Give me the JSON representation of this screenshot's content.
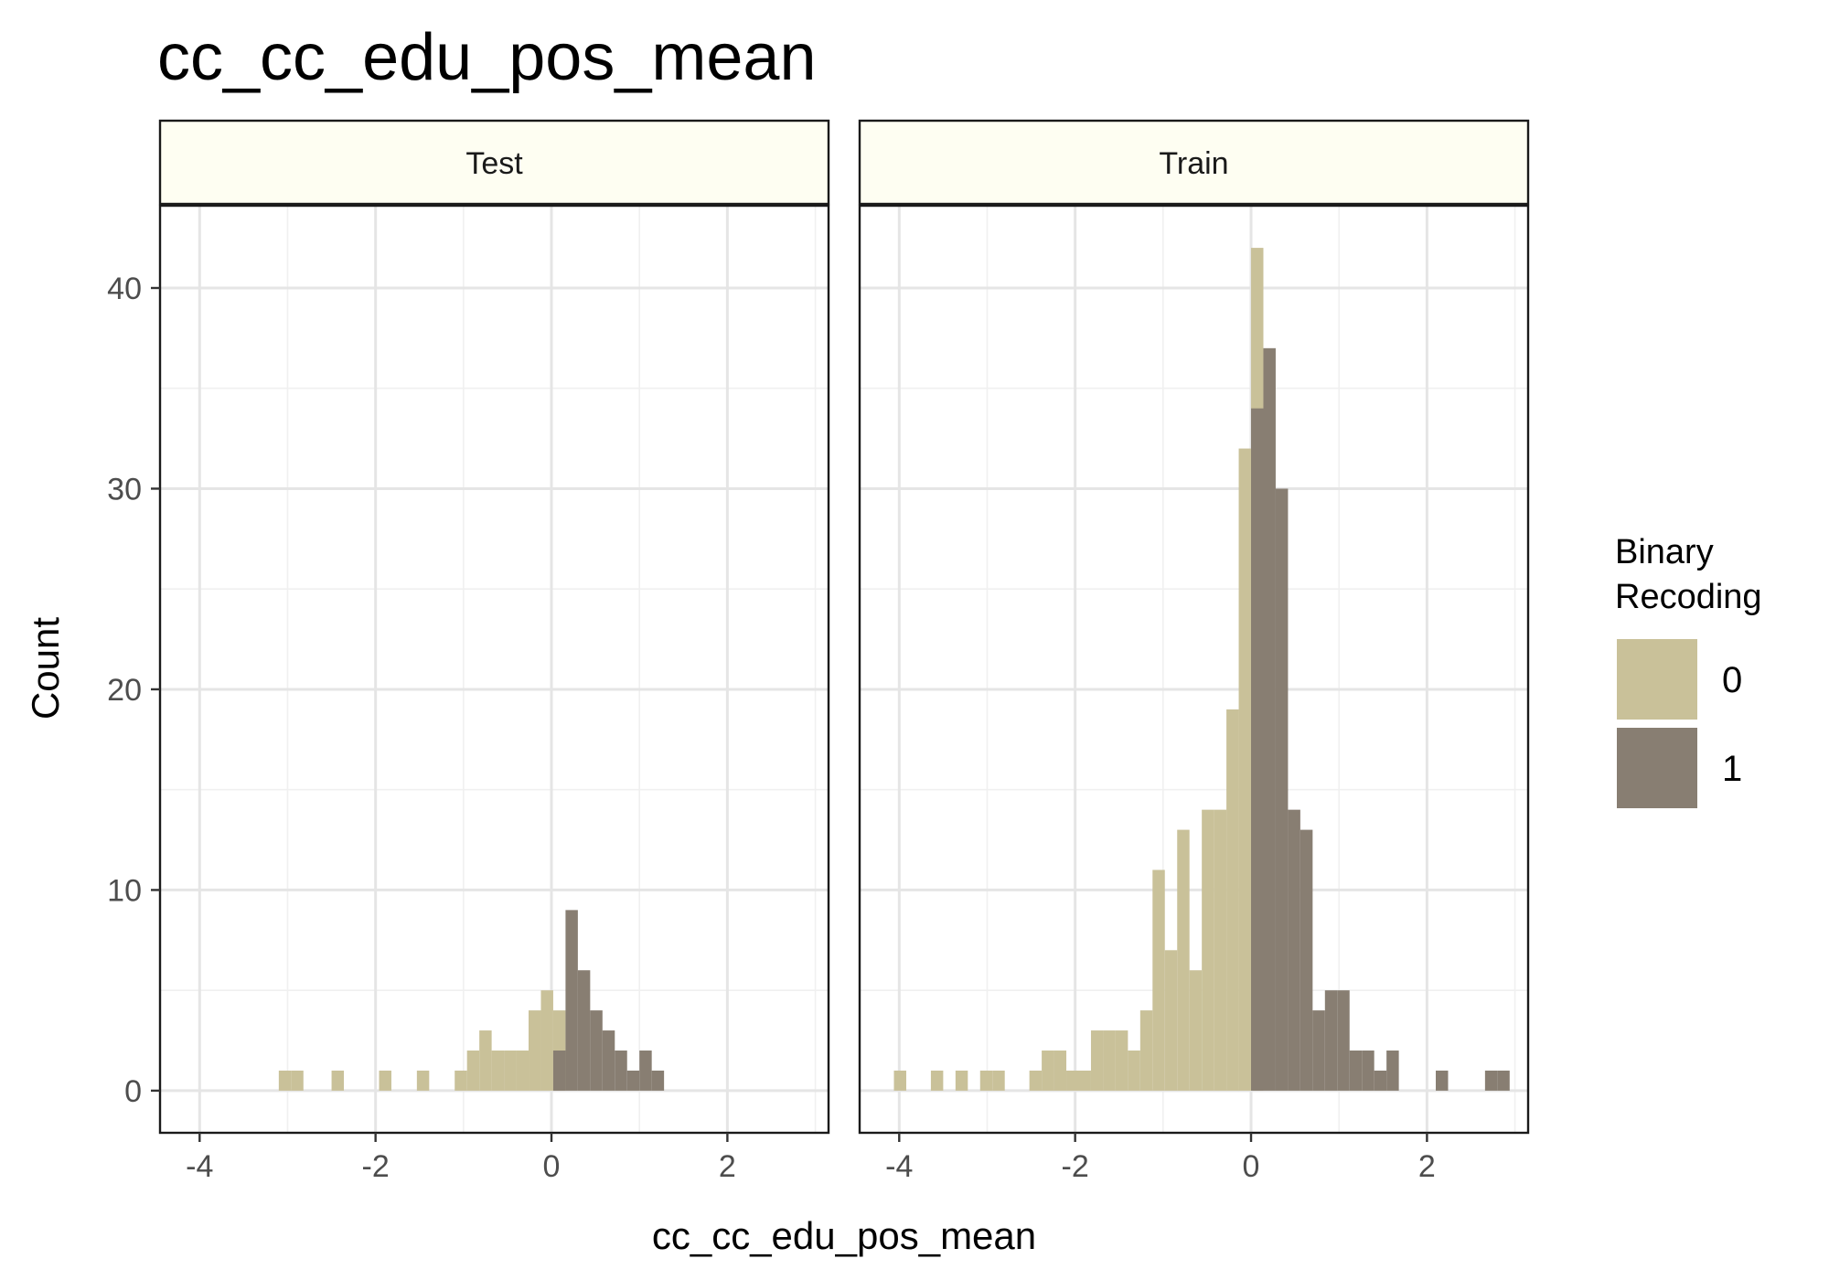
{
  "chart_data": {
    "type": "bar",
    "title": "cc_cc_edu_pos_mean",
    "xlabel": "cc_cc_edu_pos_mean",
    "ylabel": "Count",
    "xlim": [
      -4.45,
      3.15
    ],
    "ylim": [
      -2.1,
      44.1
    ],
    "x_ticks": [
      -4,
      -2,
      0,
      2
    ],
    "x_tick_labels": [
      "-4",
      "-2",
      "0",
      "2"
    ],
    "y_ticks": [
      0,
      10,
      20,
      30,
      40
    ],
    "y_tick_labels": [
      "0",
      "10",
      "20",
      "30",
      "40"
    ],
    "grid": true,
    "bin_width": 0.14,
    "legend": {
      "title_lines": [
        "Binary",
        "Recoding"
      ],
      "placement": "right",
      "entries": [
        {
          "label": "0",
          "color": "#C9C199"
        },
        {
          "label": "1",
          "color": "#887E72"
        }
      ]
    },
    "colors": {
      "panel_border": "#1a1a1a",
      "strip_fill": "#FEFEF2",
      "grid_major": "#e5e5e5",
      "grid_minor": "#f0f0f0",
      "bar_0": "#C9C199",
      "bar_1": "#887E72"
    },
    "panels": [
      {
        "label": "Test",
        "series": [
          {
            "name": "0",
            "bins": [
              [
                -3.1,
                1
              ],
              [
                -2.96,
                1
              ],
              [
                -2.5,
                1
              ],
              [
                -1.96,
                1
              ],
              [
                -1.53,
                1
              ],
              [
                -1.1,
                1
              ],
              [
                -0.96,
                2
              ],
              [
                -0.82,
                3
              ],
              [
                -0.68,
                2
              ],
              [
                -0.54,
                2
              ],
              [
                -0.4,
                2
              ],
              [
                -0.26,
                4
              ],
              [
                -0.12,
                5
              ],
              [
                0.02,
                4
              ]
            ]
          },
          {
            "name": "1",
            "bins": [
              [
                0.02,
                2
              ],
              [
                0.16,
                9
              ],
              [
                0.3,
                6
              ],
              [
                0.44,
                4
              ],
              [
                0.58,
                3
              ],
              [
                0.72,
                2
              ],
              [
                0.86,
                1
              ],
              [
                1.0,
                2
              ],
              [
                1.14,
                1
              ]
            ]
          }
        ]
      },
      {
        "label": "Train",
        "series": [
          {
            "name": "0",
            "bins": [
              [
                -4.06,
                1
              ],
              [
                -3.64,
                1
              ],
              [
                -3.36,
                1
              ],
              [
                -3.08,
                1
              ],
              [
                -2.94,
                1
              ],
              [
                -2.52,
                1
              ],
              [
                -2.38,
                2
              ],
              [
                -2.24,
                2
              ],
              [
                -2.1,
                1
              ],
              [
                -1.96,
                1
              ],
              [
                -1.82,
                3
              ],
              [
                -1.68,
                3
              ],
              [
                -1.54,
                3
              ],
              [
                -1.4,
                2
              ],
              [
                -1.26,
                4
              ],
              [
                -1.12,
                11
              ],
              [
                -0.98,
                7
              ],
              [
                -0.84,
                13
              ],
              [
                -0.7,
                6
              ],
              [
                -0.56,
                14
              ],
              [
                -0.42,
                14
              ],
              [
                -0.28,
                19
              ],
              [
                -0.14,
                32
              ],
              [
                0.0,
                42
              ]
            ]
          },
          {
            "name": "1",
            "bins": [
              [
                0.0,
                34
              ],
              [
                0.14,
                37
              ],
              [
                0.28,
                30
              ],
              [
                0.42,
                14
              ],
              [
                0.56,
                13
              ],
              [
                0.7,
                4
              ],
              [
                0.84,
                5
              ],
              [
                0.98,
                5
              ],
              [
                1.12,
                2
              ],
              [
                1.26,
                2
              ],
              [
                1.4,
                1
              ],
              [
                1.54,
                2
              ],
              [
                2.1,
                1
              ],
              [
                2.66,
                1
              ],
              [
                2.8,
                1
              ]
            ]
          }
        ]
      }
    ]
  }
}
